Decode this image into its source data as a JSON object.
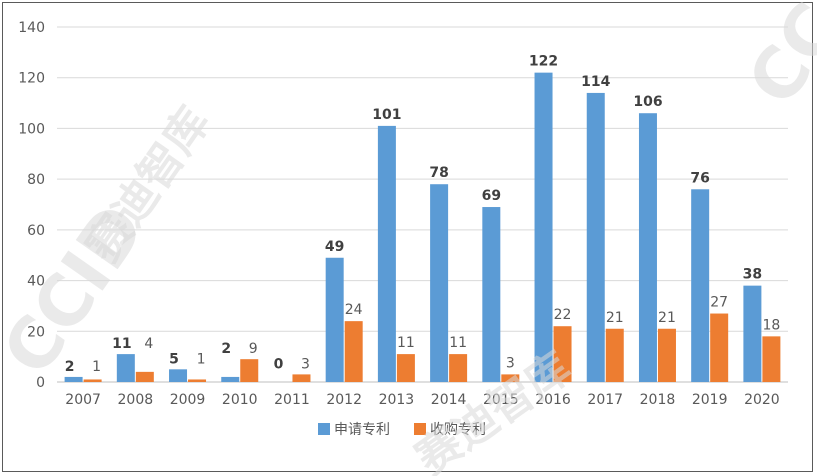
{
  "chart_data": {
    "type": "bar",
    "title": "",
    "xlabel": "",
    "ylabel": "",
    "categories": [
      "2007",
      "2008",
      "2009",
      "2010",
      "2011",
      "2012",
      "2013",
      "2014",
      "2015",
      "2016",
      "2017",
      "2018",
      "2019",
      "2020"
    ],
    "series": [
      {
        "name": "申请专利",
        "color": "#5b9bd5",
        "values": [
          2,
          11,
          5,
          2,
          0,
          49,
          101,
          78,
          69,
          122,
          114,
          106,
          76,
          38
        ]
      },
      {
        "name": "收购专利",
        "color": "#ed7d31",
        "values": [
          1,
          4,
          1,
          9,
          3,
          24,
          11,
          11,
          3,
          22,
          21,
          21,
          27,
          18
        ]
      }
    ],
    "ylim": [
      0,
      140
    ],
    "yticks": [
      0,
      20,
      40,
      60,
      80,
      100,
      120,
      140
    ],
    "grid": true,
    "legend": "bottom",
    "data_labels": true
  },
  "watermark": {
    "text": "赛迪智库",
    "logo": "CCID"
  }
}
